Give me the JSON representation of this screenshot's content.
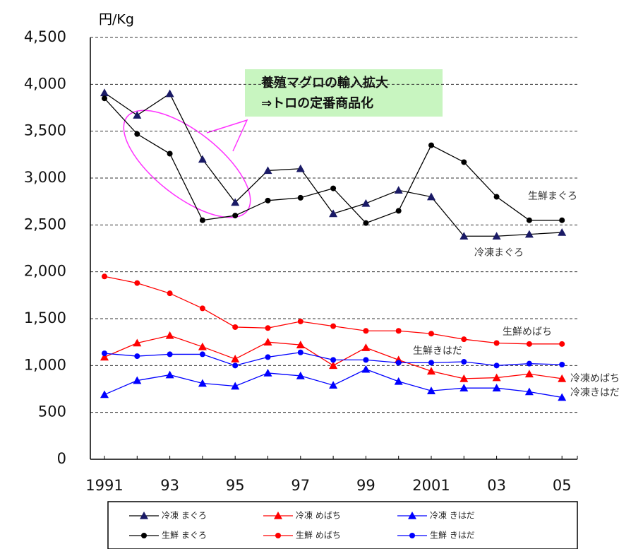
{
  "chart_data": {
    "type": "line",
    "y_unit_label": "円/Kg",
    "categories": [
      "1991",
      null,
      "93",
      null,
      "95",
      null,
      "97",
      null,
      "99",
      null,
      "2001",
      null,
      "03",
      null,
      "05"
    ],
    "ylim": [
      0,
      4500
    ],
    "yticks": [
      0,
      500,
      {
        "value": 1000,
        "label": "1,000"
      },
      {
        "value": 1500,
        "label": "1,500"
      },
      {
        "value": 2000,
        "label": "2,000"
      },
      {
        "value": 2500,
        "label": "2,500"
      },
      {
        "value": 3000,
        "label": "3,000"
      },
      {
        "value": 3500,
        "label": "3,500"
      },
      {
        "value": 4000,
        "label": "4,000"
      },
      {
        "value": 4500,
        "label": "4,500"
      }
    ],
    "grid": true,
    "series": [
      {
        "name": "冷凍 まぐろ",
        "color": "#000000",
        "marker": "triangle",
        "values": [
          3910,
          3670,
          3900,
          3200,
          2740,
          3080,
          3100,
          2620,
          2730,
          2870,
          2800,
          2380,
          2380,
          2400,
          2420
        ]
      },
      {
        "name": "冷凍 めばち",
        "color": "#ff0000",
        "marker": "triangle",
        "values": [
          1090,
          1240,
          1320,
          1200,
          1070,
          1250,
          1220,
          1000,
          1190,
          1060,
          940,
          860,
          870,
          910,
          860
        ]
      },
      {
        "name": "冷凍 きはだ",
        "color": "#0000ff",
        "marker": "triangle",
        "values": [
          690,
          840,
          900,
          810,
          780,
          920,
          890,
          790,
          960,
          830,
          730,
          760,
          760,
          720,
          660
        ]
      },
      {
        "name": "生鮮 まぐろ",
        "color": "#000000",
        "marker": "circle",
        "values": [
          3850,
          3470,
          3260,
          2550,
          2600,
          2760,
          2790,
          2890,
          2520,
          2650,
          3350,
          3170,
          2800,
          2550,
          2550
        ]
      },
      {
        "name": "生鮮 めばち",
        "color": "#ff0000",
        "marker": "circle",
        "values": [
          1950,
          1880,
          1770,
          1610,
          1410,
          1400,
          1470,
          1420,
          1370,
          1370,
          1340,
          1280,
          1240,
          1230,
          1230
        ]
      },
      {
        "name": "生鮮 きはだ",
        "color": "#0000ff",
        "marker": "circle",
        "values": [
          1130,
          1100,
          1120,
          1120,
          1000,
          1090,
          1140,
          1060,
          1060,
          1030,
          1030,
          1040,
          1000,
          1020,
          1010
        ]
      }
    ],
    "callout": [
      "養殖マグロの輸入拡大",
      "⇒トロの定番商品化"
    ],
    "annotations": [
      "生鮮まぐろ",
      "冷凍まぐろ",
      "生鮮めばち",
      "生鮮きはだ",
      "冷凍めばち",
      "冷凍きはだ"
    ]
  }
}
